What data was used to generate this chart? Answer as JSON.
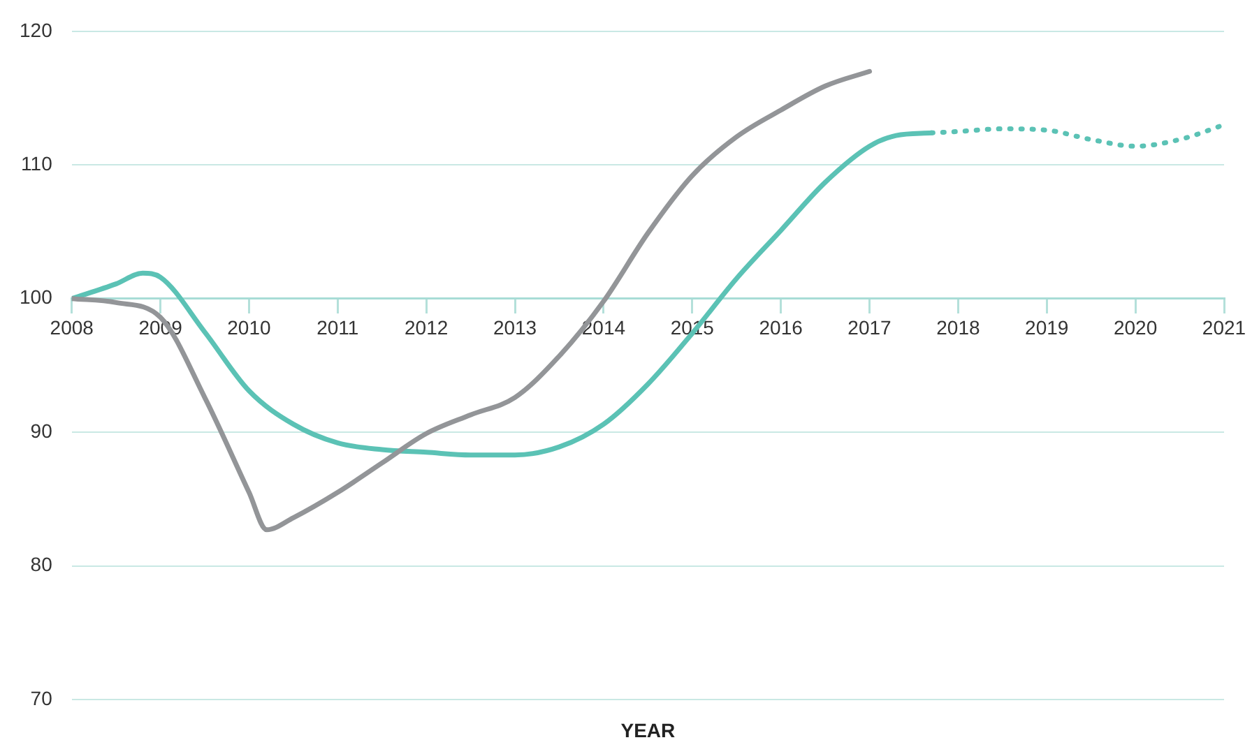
{
  "chart_data": {
    "type": "line",
    "xlabel": "YEAR",
    "xlim": [
      2008,
      2021
    ],
    "xticks": [
      2008,
      2009,
      2010,
      2011,
      2012,
      2013,
      2014,
      2015,
      2016,
      2017,
      2018,
      2019,
      2020,
      2021
    ],
    "ylim": [
      70,
      120
    ],
    "yticks": [
      70,
      80,
      90,
      100,
      110,
      120
    ],
    "grid": "y",
    "legend": false,
    "marker": "none",
    "series": [
      {
        "color": "#939598",
        "line_style": "solid",
        "x": [
          2008,
          2008.5,
          2009,
          2009.5,
          2010,
          2010.2,
          2010.5,
          2011,
          2011.5,
          2012,
          2012.5,
          2013,
          2013.5,
          2014,
          2014.5,
          2015,
          2015.5,
          2016,
          2016.5,
          2017
        ],
        "values": [
          100,
          99.7,
          98.6,
          92.6,
          85.5,
          82.7,
          83.6,
          85.5,
          87.7,
          89.9,
          91.3,
          92.6,
          95.7,
          99.8,
          104.9,
          109.2,
          112.1,
          114.1,
          115.9,
          117.0
        ]
      },
      {
        "color": "#5bc2b5",
        "line_style": "solid",
        "x": [
          2008,
          2008.5,
          2008.8,
          2009,
          2009.5,
          2010,
          2010.5,
          2011,
          2011.5,
          2012,
          2012.5,
          2013,
          2013.5,
          2014,
          2014.5,
          2015,
          2015.5,
          2016,
          2016.5,
          2017,
          2017.3,
          2017.7
        ],
        "values": [
          100,
          101.1,
          101.9,
          101.6,
          97.5,
          93.1,
          90.6,
          89.2,
          88.7,
          88.5,
          88.3,
          88.3,
          88.9,
          90.6,
          93.6,
          97.4,
          101.5,
          105.1,
          108.7,
          111.4,
          112.2,
          112.4
        ]
      },
      {
        "color": "#5bc2b5",
        "line_style": "dotted",
        "x": [
          2017.7,
          2018,
          2018.5,
          2019,
          2019.5,
          2020,
          2020.5,
          2021
        ],
        "values": [
          112.4,
          112.5,
          112.7,
          112.6,
          111.9,
          111.4,
          111.9,
          113.0
        ]
      }
    ]
  }
}
